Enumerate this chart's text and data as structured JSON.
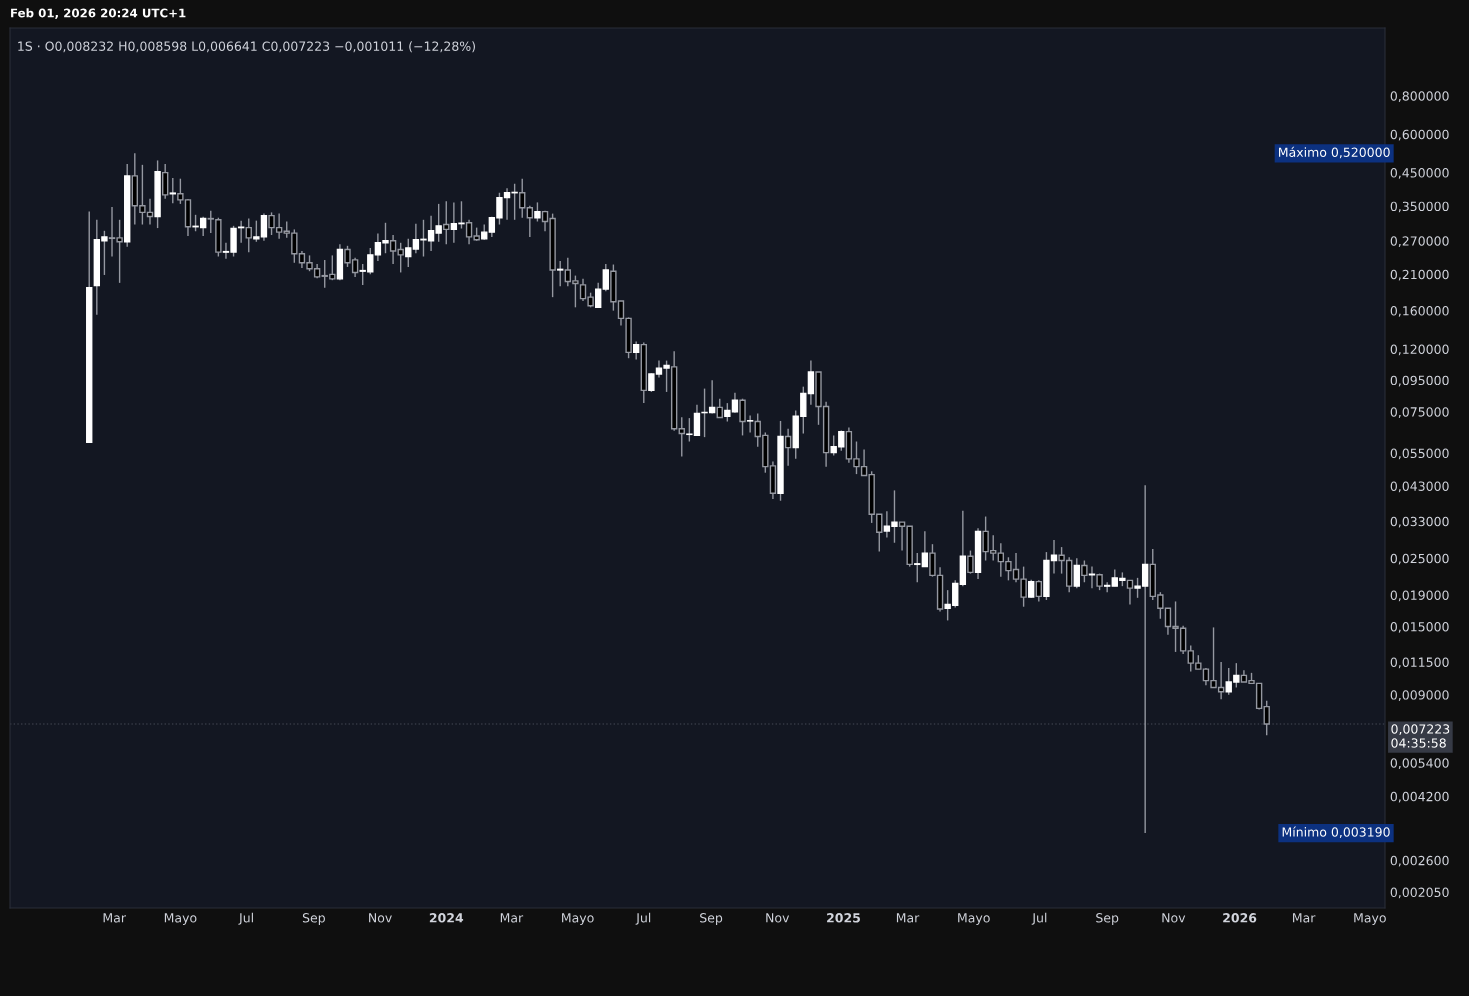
{
  "chart_data": {
    "type": "candlestick",
    "title": "1S · O0,008232 H0,008598 L0,006641 C0,007223 −0,001011 (−12,28%)",
    "annotations": [
      "Feb 01, 2026 20:24 UTC+1",
      "Máximo 0,520000",
      "Mínimo 0,003190"
    ],
    "log": "y",
    "grid": false,
    "legend": false,
    "xlim": [
      "2022-11-25",
      "2026-05-15"
    ],
    "xticks": [
      {
        "value": "2023-03-01",
        "label": "Mar"
      },
      {
        "value": "2023-05-01",
        "label": "Mayo"
      },
      {
        "value": "2023-07-01",
        "label": "Jul"
      },
      {
        "value": "2023-09-01",
        "label": "Sep"
      },
      {
        "value": "2023-11-01",
        "label": "Nov"
      },
      {
        "value": "2024-01-01",
        "label": "2024"
      },
      {
        "value": "2024-03-01",
        "label": "Mar"
      },
      {
        "value": "2024-05-01",
        "label": "Mayo"
      },
      {
        "value": "2024-07-01",
        "label": "Jul"
      },
      {
        "value": "2024-09-01",
        "label": "Sep"
      },
      {
        "value": "2024-11-01",
        "label": "Nov"
      },
      {
        "value": "2025-01-01",
        "label": "2025"
      },
      {
        "value": "2025-03-01",
        "label": "Mar"
      },
      {
        "value": "2025-05-01",
        "label": "Mayo"
      },
      {
        "value": "2025-07-01",
        "label": "Jul"
      },
      {
        "value": "2025-09-01",
        "label": "Sep"
      },
      {
        "value": "2025-11-01",
        "label": "Nov"
      },
      {
        "value": "2026-01-01",
        "label": "2026"
      },
      {
        "value": "2026-03-01",
        "label": "Mar"
      },
      {
        "value": "2026-05-01",
        "label": "Mayo"
      }
    ],
    "ylim": [
      0.00182,
      1.33
    ],
    "yticks": [
      {
        "value": 0.00205,
        "label": "0,002050"
      },
      {
        "value": 0.0026,
        "label": "0,002600"
      },
      {
        "value": 0.0042,
        "label": "0,004200"
      },
      {
        "value": 0.0054,
        "label": "0,005400"
      },
      {
        "value": 0.009,
        "label": "0,009000"
      },
      {
        "value": 0.0115,
        "label": "0,011500"
      },
      {
        "value": 0.015,
        "label": "0,015000"
      },
      {
        "value": 0.019,
        "label": "0,019000"
      },
      {
        "value": 0.025,
        "label": "0,025000"
      },
      {
        "value": 0.033,
        "label": "0,033000"
      },
      {
        "value": 0.043,
        "label": "0,043000"
      },
      {
        "value": 0.055,
        "label": "0,055000"
      },
      {
        "value": 0.075,
        "label": "0,075000"
      },
      {
        "value": 0.095,
        "label": "0,095000"
      },
      {
        "value": 0.12,
        "label": "0,120000"
      },
      {
        "value": 0.16,
        "label": "0,160000"
      },
      {
        "value": 0.21,
        "label": "0,210000"
      },
      {
        "value": 0.27,
        "label": "0,270000"
      },
      {
        "value": 0.35,
        "label": "0,350000"
      },
      {
        "value": 0.45,
        "label": "0,450000"
      },
      {
        "value": 0.6,
        "label": "0,600000"
      },
      {
        "value": 0.8,
        "label": "0,800000"
      }
    ],
    "ref_lines": [
      {
        "axis": "y",
        "value": 0.007223,
        "label": "0,007223\n04:35:58",
        "line_style": "dotted",
        "color": "#363a45"
      }
    ],
    "x": [
      "2023-02-06",
      "2023-02-13",
      "2023-02-20",
      "2023-02-27",
      "2023-03-06",
      "2023-03-13",
      "2023-03-20",
      "2023-03-27",
      "2023-04-03",
      "2023-04-10",
      "2023-04-17",
      "2023-04-24",
      "2023-05-01",
      "2023-05-08",
      "2023-05-15",
      "2023-05-22",
      "2023-05-29",
      "2023-06-05",
      "2023-06-12",
      "2023-06-19",
      "2023-06-26",
      "2023-07-03",
      "2023-07-10",
      "2023-07-17",
      "2023-07-24",
      "2023-07-31",
      "2023-08-07",
      "2023-08-14",
      "2023-08-21",
      "2023-08-28",
      "2023-09-04",
      "2023-09-11",
      "2023-09-18",
      "2023-09-25",
      "2023-10-02",
      "2023-10-09",
      "2023-10-16",
      "2023-10-23",
      "2023-10-30",
      "2023-11-06",
      "2023-11-13",
      "2023-11-20",
      "2023-11-27",
      "2023-12-04",
      "2023-12-11",
      "2023-12-18",
      "2023-12-25",
      "2024-01-01",
      "2024-01-08",
      "2024-01-15",
      "2024-01-22",
      "2024-01-29",
      "2024-02-05",
      "2024-02-12",
      "2024-02-19",
      "2024-02-26",
      "2024-03-04",
      "2024-03-11",
      "2024-03-18",
      "2024-03-25",
      "2024-04-01",
      "2024-04-08",
      "2024-04-15",
      "2024-04-22",
      "2024-04-29",
      "2024-05-06",
      "2024-05-13",
      "2024-05-20",
      "2024-05-27",
      "2024-06-03",
      "2024-06-10",
      "2024-06-17",
      "2024-06-24",
      "2024-07-01",
      "2024-07-08",
      "2024-07-15",
      "2024-07-22",
      "2024-07-29",
      "2024-08-05",
      "2024-08-12",
      "2024-08-19",
      "2024-08-26",
      "2024-09-02",
      "2024-09-09",
      "2024-09-16",
      "2024-09-23",
      "2024-09-30",
      "2024-10-07",
      "2024-10-14",
      "2024-10-21",
      "2024-10-28",
      "2024-11-04",
      "2024-11-11",
      "2024-11-18",
      "2024-11-25",
      "2024-12-02",
      "2024-12-09",
      "2024-12-16",
      "2024-12-23",
      "2024-12-30",
      "2025-01-06",
      "2025-01-13",
      "2025-01-20",
      "2025-01-27",
      "2025-02-03",
      "2025-02-10",
      "2025-02-17",
      "2025-02-24",
      "2025-03-03",
      "2025-03-10",
      "2025-03-17",
      "2025-03-24",
      "2025-03-31",
      "2025-04-07",
      "2025-04-14",
      "2025-04-21",
      "2025-04-28",
      "2025-05-05",
      "2025-05-12",
      "2025-05-19",
      "2025-05-26",
      "2025-06-02",
      "2025-06-09",
      "2025-06-16",
      "2025-06-23",
      "2025-06-30",
      "2025-07-07",
      "2025-07-14",
      "2025-07-21",
      "2025-07-28",
      "2025-08-04",
      "2025-08-11",
      "2025-08-18",
      "2025-08-25",
      "2025-09-01",
      "2025-09-08",
      "2025-09-15",
      "2025-09-22",
      "2025-09-29",
      "2025-10-06",
      "2025-10-13",
      "2025-10-20",
      "2025-10-27",
      "2025-11-03",
      "2025-11-10",
      "2025-11-17",
      "2025-11-24",
      "2025-12-01",
      "2025-12-08",
      "2025-12-15",
      "2025-12-22",
      "2025-12-29",
      "2026-01-05",
      "2026-01-12",
      "2026-01-19",
      "2026-01-26"
    ],
    "ohlc": [
      [
        0.0596,
        0.336,
        0.0596,
        0.19
      ],
      [
        0.193,
        0.316,
        0.155,
        0.272
      ],
      [
        0.27,
        0.291,
        0.209,
        0.278
      ],
      [
        0.276,
        0.348,
        0.24,
        0.275
      ],
      [
        0.276,
        0.316,
        0.197,
        0.268
      ],
      [
        0.268,
        0.48,
        0.258,
        0.439
      ],
      [
        0.439,
        0.52,
        0.305,
        0.351
      ],
      [
        0.351,
        0.477,
        0.305,
        0.334
      ],
      [
        0.334,
        0.37,
        0.305,
        0.324
      ],
      [
        0.324,
        0.493,
        0.297,
        0.453
      ],
      [
        0.45,
        0.48,
        0.37,
        0.381
      ],
      [
        0.384,
        0.432,
        0.358,
        0.386
      ],
      [
        0.384,
        0.43,
        0.356,
        0.367
      ],
      [
        0.367,
        0.369,
        0.28,
        0.3
      ],
      [
        0.3,
        0.328,
        0.29,
        0.301
      ],
      [
        0.298,
        0.323,
        0.28,
        0.319
      ],
      [
        0.319,
        0.338,
        0.286,
        0.318
      ],
      [
        0.316,
        0.321,
        0.24,
        0.248
      ],
      [
        0.248,
        0.266,
        0.236,
        0.249
      ],
      [
        0.248,
        0.302,
        0.24,
        0.296
      ],
      [
        0.298,
        0.314,
        0.266,
        0.299
      ],
      [
        0.298,
        0.319,
        0.248,
        0.276
      ],
      [
        0.274,
        0.314,
        0.268,
        0.278
      ],
      [
        0.278,
        0.331,
        0.27,
        0.326
      ],
      [
        0.326,
        0.334,
        0.282,
        0.298
      ],
      [
        0.298,
        0.331,
        0.274,
        0.288
      ],
      [
        0.29,
        0.312,
        0.276,
        0.286
      ],
      [
        0.286,
        0.294,
        0.229,
        0.245
      ],
      [
        0.245,
        0.25,
        0.22,
        0.229
      ],
      [
        0.229,
        0.242,
        0.215,
        0.219
      ],
      [
        0.219,
        0.227,
        0.204,
        0.206
      ],
      [
        0.208,
        0.234,
        0.19,
        0.207
      ],
      [
        0.21,
        0.242,
        0.201,
        0.203
      ],
      [
        0.203,
        0.263,
        0.201,
        0.253
      ],
      [
        0.253,
        0.26,
        0.222,
        0.229
      ],
      [
        0.234,
        0.238,
        0.206,
        0.213
      ],
      [
        0.215,
        0.227,
        0.194,
        0.216
      ],
      [
        0.214,
        0.256,
        0.21,
        0.243
      ],
      [
        0.243,
        0.285,
        0.232,
        0.266
      ],
      [
        0.266,
        0.309,
        0.246,
        0.27
      ],
      [
        0.27,
        0.282,
        0.227,
        0.25
      ],
      [
        0.253,
        0.266,
        0.213,
        0.243
      ],
      [
        0.24,
        0.274,
        0.222,
        0.256
      ],
      [
        0.254,
        0.307,
        0.246,
        0.272
      ],
      [
        0.272,
        0.316,
        0.24,
        0.273
      ],
      [
        0.27,
        0.326,
        0.25,
        0.291
      ],
      [
        0.286,
        0.356,
        0.268,
        0.302
      ],
      [
        0.305,
        0.363,
        0.263,
        0.294
      ],
      [
        0.294,
        0.36,
        0.266,
        0.307
      ],
      [
        0.307,
        0.363,
        0.296,
        0.308
      ],
      [
        0.309,
        0.316,
        0.263,
        0.278
      ],
      [
        0.28,
        0.298,
        0.27,
        0.272
      ],
      [
        0.274,
        0.305,
        0.272,
        0.288
      ],
      [
        0.288,
        0.323,
        0.278,
        0.321
      ],
      [
        0.321,
        0.387,
        0.305,
        0.373
      ],
      [
        0.373,
        0.4,
        0.316,
        0.387
      ],
      [
        0.387,
        0.414,
        0.316,
        0.388
      ],
      [
        0.387,
        0.43,
        0.321,
        0.346
      ],
      [
        0.346,
        0.351,
        0.278,
        0.321
      ],
      [
        0.321,
        0.36,
        0.312,
        0.336
      ],
      [
        0.336,
        0.338,
        0.29,
        0.312
      ],
      [
        0.319,
        0.331,
        0.177,
        0.217
      ],
      [
        0.217,
        0.232,
        0.192,
        0.218
      ],
      [
        0.217,
        0.238,
        0.192,
        0.199
      ],
      [
        0.2,
        0.208,
        0.164,
        0.196
      ],
      [
        0.194,
        0.203,
        0.172,
        0.175
      ],
      [
        0.177,
        0.183,
        0.164,
        0.166
      ],
      [
        0.164,
        0.197,
        0.164,
        0.188
      ],
      [
        0.188,
        0.227,
        0.185,
        0.217
      ],
      [
        0.215,
        0.226,
        0.16,
        0.171
      ],
      [
        0.172,
        0.172,
        0.143,
        0.151
      ],
      [
        0.151,
        0.152,
        0.112,
        0.117
      ],
      [
        0.117,
        0.127,
        0.111,
        0.124
      ],
      [
        0.124,
        0.126,
        0.08,
        0.088
      ],
      [
        0.088,
        0.1,
        0.087,
        0.0995
      ],
      [
        0.0995,
        0.11,
        0.097,
        0.104
      ],
      [
        0.104,
        0.11,
        0.087,
        0.106
      ],
      [
        0.105,
        0.118,
        0.065,
        0.066
      ],
      [
        0.066,
        0.072,
        0.0536,
        0.0637
      ],
      [
        0.0633,
        0.0715,
        0.06,
        0.0634
      ],
      [
        0.0628,
        0.079,
        0.0628,
        0.074
      ],
      [
        0.0745,
        0.0892,
        0.062,
        0.0746
      ],
      [
        0.0745,
        0.095,
        0.074,
        0.0775
      ],
      [
        0.0775,
        0.0827,
        0.0718,
        0.0718
      ],
      [
        0.0725,
        0.08,
        0.0697,
        0.0757
      ],
      [
        0.075,
        0.0865,
        0.0745,
        0.0817
      ],
      [
        0.0817,
        0.0827,
        0.0628,
        0.0697
      ],
      [
        0.07,
        0.0729,
        0.0642,
        0.0701
      ],
      [
        0.0697,
        0.074,
        0.0577,
        0.0623
      ],
      [
        0.0628,
        0.0642,
        0.0475,
        0.0497
      ],
      [
        0.05,
        0.0517,
        0.039,
        0.0407
      ],
      [
        0.0407,
        0.07,
        0.0385,
        0.0623
      ],
      [
        0.0623,
        0.066,
        0.05,
        0.0573
      ],
      [
        0.0573,
        0.0757,
        0.0527,
        0.0725
      ],
      [
        0.0725,
        0.0905,
        0.0637,
        0.086
      ],
      [
        0.086,
        0.11,
        0.079,
        0.101
      ],
      [
        0.101,
        0.101,
        0.068,
        0.078
      ],
      [
        0.078,
        0.0808,
        0.0497,
        0.0552
      ],
      [
        0.0552,
        0.0628,
        0.054,
        0.0577
      ],
      [
        0.0577,
        0.0652,
        0.056,
        0.0646
      ],
      [
        0.0646,
        0.0667,
        0.0512,
        0.0527
      ],
      [
        0.0527,
        0.06,
        0.047,
        0.0497
      ],
      [
        0.0497,
        0.0565,
        0.0465,
        0.0465
      ],
      [
        0.0468,
        0.048,
        0.0326,
        0.0348
      ],
      [
        0.0348,
        0.0348,
        0.0263,
        0.0304
      ],
      [
        0.0307,
        0.0356,
        0.0292,
        0.0318
      ],
      [
        0.0318,
        0.0416,
        0.0281,
        0.0328
      ],
      [
        0.0328,
        0.0328,
        0.0265,
        0.0318
      ],
      [
        0.0318,
        0.0318,
        0.0235,
        0.0239
      ],
      [
        0.0239,
        0.026,
        0.0209,
        0.024
      ],
      [
        0.0235,
        0.0306,
        0.0235,
        0.026
      ],
      [
        0.026,
        0.0278,
        0.0218,
        0.022
      ],
      [
        0.022,
        0.0234,
        0.0168,
        0.0171
      ],
      [
        0.0172,
        0.0197,
        0.0157,
        0.0177
      ],
      [
        0.0176,
        0.0212,
        0.0173,
        0.0207
      ],
      [
        0.0206,
        0.0357,
        0.0203,
        0.0254
      ],
      [
        0.0254,
        0.0265,
        0.0223,
        0.0225
      ],
      [
        0.0225,
        0.0313,
        0.0214,
        0.0306
      ],
      [
        0.0306,
        0.0342,
        0.0246,
        0.0263
      ],
      [
        0.0265,
        0.0297,
        0.0246,
        0.026
      ],
      [
        0.026,
        0.028,
        0.0218,
        0.0244
      ],
      [
        0.0244,
        0.0252,
        0.0212,
        0.0228
      ],
      [
        0.023,
        0.026,
        0.0209,
        0.0214
      ],
      [
        0.0214,
        0.0235,
        0.0174,
        0.0187
      ],
      [
        0.0187,
        0.0213,
        0.0186,
        0.021
      ],
      [
        0.021,
        0.0212,
        0.0181,
        0.0188
      ],
      [
        0.0188,
        0.0262,
        0.0183,
        0.0246
      ],
      [
        0.0246,
        0.0287,
        0.0223,
        0.0256
      ],
      [
        0.0256,
        0.0272,
        0.0223,
        0.0246
      ],
      [
        0.0246,
        0.0252,
        0.0194,
        0.0203
      ],
      [
        0.0203,
        0.025,
        0.02,
        0.0237
      ],
      [
        0.0237,
        0.0246,
        0.0209,
        0.022
      ],
      [
        0.0221,
        0.0235,
        0.02,
        0.0222
      ],
      [
        0.0221,
        0.0223,
        0.0197,
        0.0203
      ],
      [
        0.0203,
        0.0209,
        0.0194,
        0.0204
      ],
      [
        0.0203,
        0.023,
        0.0203,
        0.0216
      ],
      [
        0.0212,
        0.0225,
        0.0203,
        0.0215
      ],
      [
        0.0212,
        0.0212,
        0.0177,
        0.02
      ],
      [
        0.02,
        0.0216,
        0.0186,
        0.0203
      ],
      [
        0.0203,
        0.0432,
        0.00319,
        0.0239
      ],
      [
        0.0239,
        0.0268,
        0.0183,
        0.0188
      ],
      [
        0.019,
        0.0194,
        0.0159,
        0.0172
      ],
      [
        0.0172,
        0.0172,
        0.0141,
        0.015
      ],
      [
        0.015,
        0.0181,
        0.0124,
        0.0148
      ],
      [
        0.0148,
        0.0151,
        0.0122,
        0.0125
      ],
      [
        0.0125,
        0.013,
        0.0107,
        0.0114
      ],
      [
        0.0114,
        0.0121,
        0.0109,
        0.0109
      ],
      [
        0.0109,
        0.011,
        0.00966,
        0.01
      ],
      [
        0.01,
        0.0149,
        0.0095,
        0.0095
      ],
      [
        0.0095,
        0.0115,
        0.0087,
        0.0092
      ],
      [
        0.0092,
        0.011,
        0.009,
        0.0099
      ],
      [
        0.0099,
        0.0114,
        0.0095,
        0.0104
      ],
      [
        0.0104,
        0.0108,
        0.0099,
        0.0099
      ],
      [
        0.01,
        0.0106,
        0.0098,
        0.0098
      ],
      [
        0.0098,
        0.0098,
        0.00806,
        0.00812
      ],
      [
        0.008232,
        0.008598,
        0.006641,
        0.007223
      ]
    ]
  }
}
